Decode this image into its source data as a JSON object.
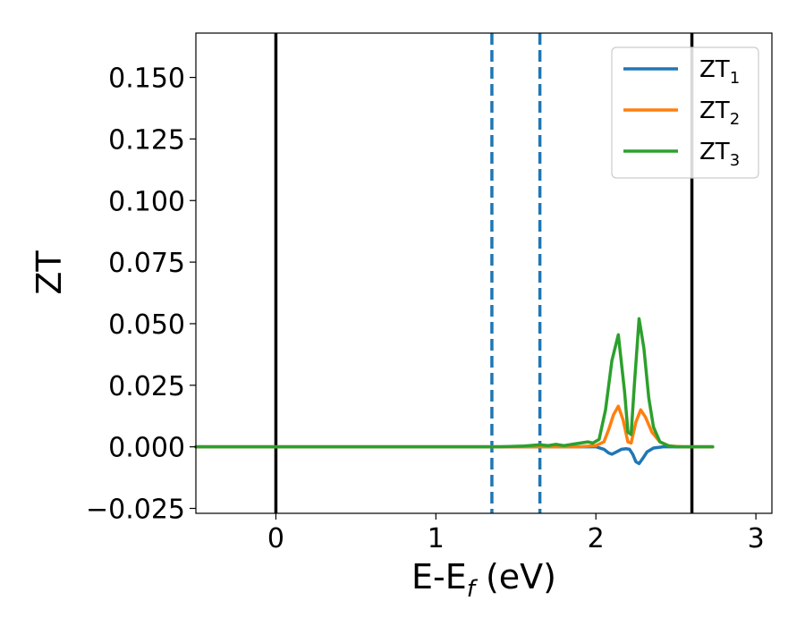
{
  "chart_data": {
    "type": "line",
    "xlabel": "E-E",
    "xlabel_sub": "f",
    "xlabel_unit": "(eV)",
    "ylabel": "ZT",
    "xlim": [
      -0.5,
      3.1
    ],
    "ylim": [
      -0.027,
      0.168
    ],
    "x_ticks": [
      0,
      1,
      2,
      3
    ],
    "x_tick_labels": [
      "0",
      "1",
      "2",
      "3"
    ],
    "y_ticks": [
      -0.025,
      0,
      0.025,
      0.05,
      0.075,
      0.1,
      0.125,
      0.15
    ],
    "y_tick_labels": [
      "−0.025",
      "0.000",
      "0.025",
      "0.050",
      "0.075",
      "0.100",
      "0.125",
      "0.150"
    ],
    "grid": false,
    "legend_position": "top-right",
    "vertical_lines": [
      {
        "x": 0,
        "style": "solid",
        "color": "#000000"
      },
      {
        "x": 2.6,
        "style": "solid",
        "color": "#000000"
      },
      {
        "x": 1.35,
        "style": "dashed",
        "color": "#1f77b4"
      },
      {
        "x": 1.65,
        "style": "dashed",
        "color": "#1f77b4"
      }
    ],
    "series": [
      {
        "name": "ZT",
        "name_sub": "1",
        "color": "#1f77b4",
        "x": [
          -0.5,
          1.5,
          2.0,
          2.05,
          2.08,
          2.1,
          2.13,
          2.16,
          2.19,
          2.21,
          2.23,
          2.25,
          2.27,
          2.29,
          2.32,
          2.36,
          2.42,
          2.5,
          2.73
        ],
        "y": [
          0,
          0,
          0,
          -0.001,
          -0.0025,
          -0.003,
          -0.002,
          -0.001,
          -0.0008,
          -0.001,
          -0.003,
          -0.006,
          -0.0068,
          -0.005,
          -0.002,
          -0.0005,
          0,
          0,
          0
        ]
      },
      {
        "name": "ZT",
        "name_sub": "2",
        "color": "#ff7f0e",
        "x": [
          -0.5,
          1.5,
          1.9,
          2.0,
          2.05,
          2.08,
          2.11,
          2.14,
          2.17,
          2.2,
          2.22,
          2.25,
          2.28,
          2.31,
          2.35,
          2.4,
          2.46,
          2.55,
          2.73
        ],
        "y": [
          0,
          0,
          0,
          0.0005,
          0.002,
          0.007,
          0.013,
          0.0165,
          0.011,
          0.002,
          0.0015,
          0.01,
          0.015,
          0.012,
          0.006,
          0.002,
          0.0003,
          0,
          0
        ]
      },
      {
        "name": "ZT",
        "name_sub": "3",
        "color": "#2ca02c",
        "x": [
          -0.5,
          1.4,
          1.55,
          1.65,
          1.7,
          1.75,
          1.8,
          1.85,
          1.9,
          1.95,
          1.98,
          2.02,
          2.06,
          2.1,
          2.14,
          2.18,
          2.2,
          2.22,
          2.24,
          2.27,
          2.3,
          2.33,
          2.36,
          2.4,
          2.45,
          2.5,
          2.6,
          2.73
        ],
        "y": [
          0,
          0,
          0.0003,
          0.0008,
          0.0005,
          0.001,
          0.0005,
          0.001,
          0.0015,
          0.002,
          0.0015,
          0.003,
          0.015,
          0.035,
          0.0455,
          0.022,
          0.006,
          0.005,
          0.025,
          0.052,
          0.04,
          0.02,
          0.008,
          0.002,
          0.0005,
          0,
          0,
          0
        ]
      }
    ]
  }
}
